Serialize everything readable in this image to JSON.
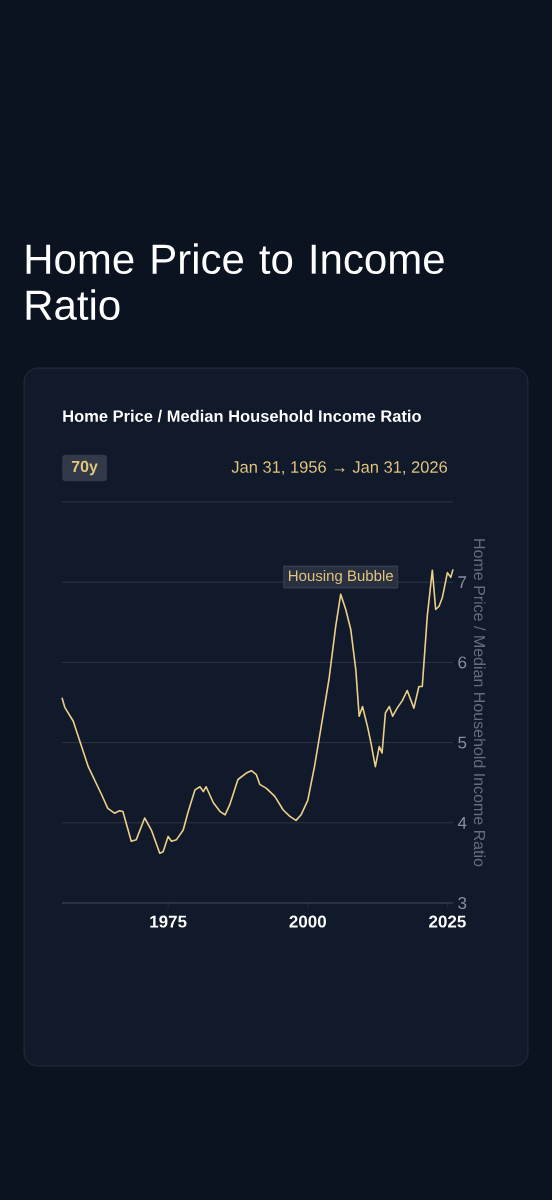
{
  "chart_data": {
    "type": "line",
    "title": "Home Price to Income Ratio",
    "subtitle": "Home Price / Median Household Income Ratio",
    "ylabel": "Home Price / Median Household Income Ratio",
    "annotations": [
      "70y",
      "Jan 31, 1956 → Jan 31, 2026",
      {
        "text": "Housing Bubble",
        "x": 2005.9,
        "y": 6.85
      }
    ],
    "x": [
      1956.0,
      1956.5,
      1958.0,
      1960.7,
      1963.1,
      1964.2,
      1965.4,
      1966.3,
      1966.9,
      1968.4,
      1969.3,
      1970.8,
      1972.0,
      1973.5,
      1974.1,
      1975.0,
      1975.6,
      1976.5,
      1977.7,
      1978.6,
      1979.8,
      1980.7,
      1981.3,
      1981.8,
      1983.1,
      1984.3,
      1985.2,
      1986.0,
      1987.5,
      1989.0,
      1989.9,
      1990.8,
      1991.4,
      1992.6,
      1994.1,
      1995.6,
      1996.8,
      1997.9,
      1998.8,
      2000.0,
      2001.2,
      2002.4,
      2003.8,
      2005.0,
      2005.9,
      2006.8,
      2007.7,
      2008.6,
      2009.2,
      2009.8,
      2010.7,
      2011.3,
      2012.1,
      2012.8,
      2013.3,
      2013.9,
      2014.6,
      2015.2,
      2016.0,
      2016.9,
      2017.8,
      2019.0,
      2019.9,
      2020.5,
      2021.4,
      2022.3,
      2022.9,
      2023.5,
      2024.1,
      2025.0,
      2025.6,
      2026.0
    ],
    "values": [
      5.56,
      5.44,
      5.27,
      4.7,
      4.35,
      4.18,
      4.12,
      4.15,
      4.14,
      3.77,
      3.79,
      4.06,
      3.91,
      3.62,
      3.64,
      3.83,
      3.77,
      3.79,
      3.91,
      4.14,
      4.41,
      4.45,
      4.39,
      4.45,
      4.25,
      4.14,
      4.1,
      4.22,
      4.54,
      4.62,
      4.65,
      4.6,
      4.48,
      4.43,
      4.33,
      4.16,
      4.08,
      4.03,
      4.1,
      4.28,
      4.7,
      5.2,
      5.79,
      6.45,
      6.85,
      6.66,
      6.41,
      5.91,
      5.33,
      5.45,
      5.2,
      5.0,
      4.7,
      4.95,
      4.87,
      5.37,
      5.45,
      5.33,
      5.43,
      5.52,
      5.65,
      5.43,
      5.7,
      5.7,
      6.58,
      7.15,
      6.66,
      6.7,
      6.81,
      7.12,
      7.06,
      7.16
    ],
    "color": "#ecd08a",
    "marker": "none",
    "line_style": "solid",
    "grid": "y",
    "xlim": [
      1956,
      2026
    ],
    "ylim": [
      3,
      8
    ],
    "xticks": [
      1975,
      2000,
      2025
    ],
    "yticks": [
      3,
      4,
      5,
      6,
      7,
      {
        "value": 8,
        "label": null
      }
    ]
  }
}
